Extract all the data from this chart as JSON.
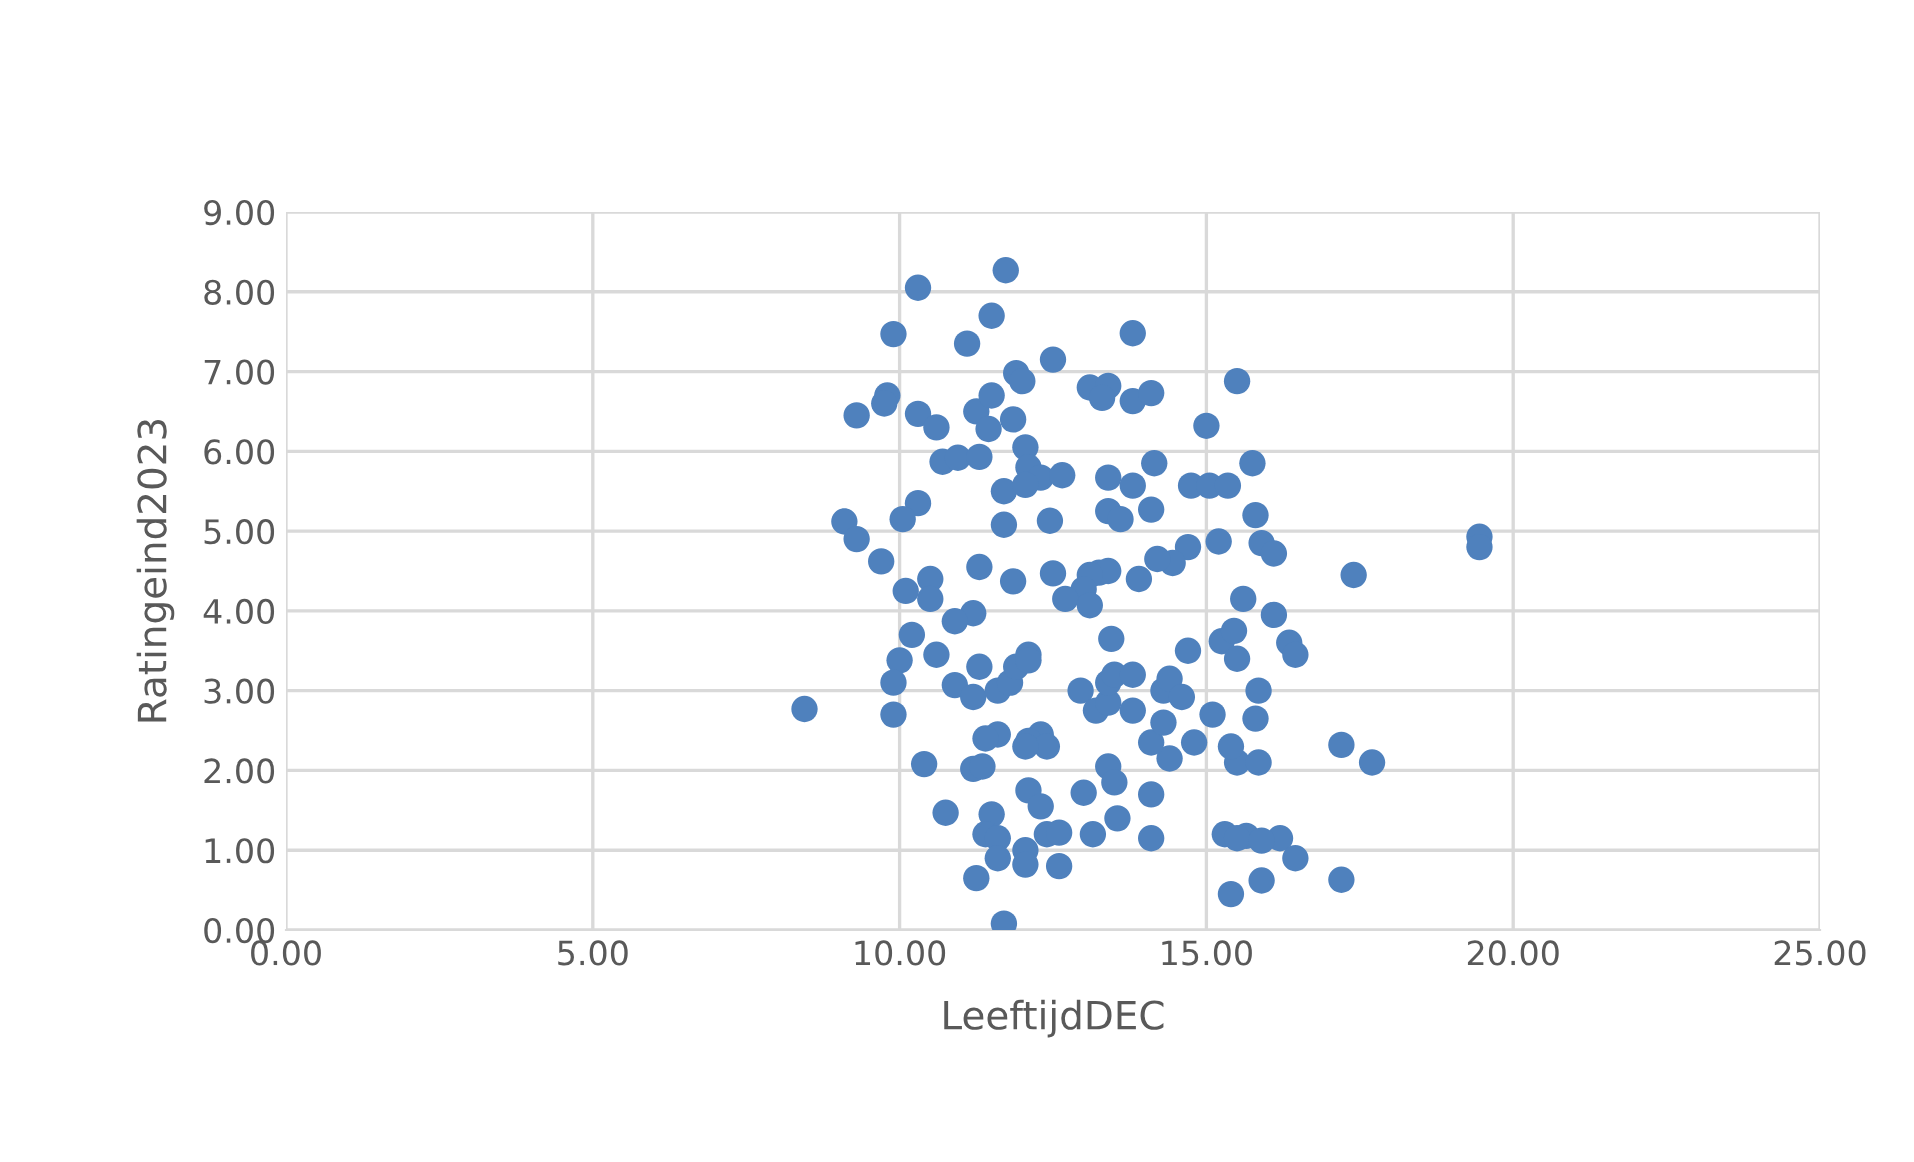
{
  "chart_data": {
    "type": "scatter",
    "xlabel": "LeeftijdDEC",
    "ylabel": "Ratingeind2023",
    "xlim": [
      0,
      25
    ],
    "xticks": [
      {
        "value": 0,
        "label": "0.00"
      },
      {
        "value": 5,
        "label": "5.00"
      },
      {
        "value": 10,
        "label": "10.00"
      },
      {
        "value": 15,
        "label": "15.00"
      },
      {
        "value": 20,
        "label": "20.00"
      },
      {
        "value": 25,
        "label": "25.00"
      }
    ],
    "ylim": [
      0,
      9
    ],
    "yticks": [
      {
        "value": 0,
        "label": "0.00"
      },
      {
        "value": 1,
        "label": "1.00"
      },
      {
        "value": 2,
        "label": "2.00"
      },
      {
        "value": 3,
        "label": "3.00"
      },
      {
        "value": 4,
        "label": "4.00"
      },
      {
        "value": 5,
        "label": "5.00"
      },
      {
        "value": 6,
        "label": "6.00"
      },
      {
        "value": 7,
        "label": "7.00"
      },
      {
        "value": 8,
        "label": "8.00"
      },
      {
        "value": 9,
        "label": "9.00"
      }
    ],
    "grid": true,
    "marker": "circle",
    "series": [
      {
        "color": "#4f81bd",
        "x": [
          11.73,
          10.3,
          11.5,
          9.9,
          11.1,
          12.5,
          13.8,
          11.9,
          12.0,
          13.1,
          13.4,
          13.3,
          13.8,
          14.1,
          15.5,
          9.8,
          9.75,
          9.3,
          10.3,
          10.6,
          11.25,
          11.5,
          11.45,
          11.85,
          15.0,
          12.05,
          10.7,
          10.95,
          11.3,
          12.1,
          11.7,
          12.3,
          12.65,
          12.05,
          13.4,
          13.8,
          14.15,
          14.75,
          15.05,
          15.35,
          15.75,
          10.3,
          9.1,
          9.3,
          10.05,
          11.7,
          12.45,
          13.4,
          13.6,
          14.1,
          15.8,
          15.9,
          16.1,
          15.2,
          14.7,
          14.45,
          14.2,
          13.9,
          13.25,
          13.4,
          13.1,
          13.0,
          12.7,
          13.1,
          12.5,
          11.85,
          11.3,
          10.5,
          9.7,
          10.1,
          10.5,
          11.2,
          10.9,
          10.2,
          10.6,
          10.0,
          9.9,
          9.9,
          8.45,
          10.9,
          11.2,
          11.3,
          11.6,
          11.8,
          11.9,
          12.1,
          12.1,
          12.95,
          13.2,
          13.4,
          13.4,
          13.5,
          13.8,
          13.8,
          13.45,
          14.3,
          14.4,
          14.6,
          14.7,
          15.1,
          15.25,
          15.45,
          15.5,
          15.6,
          16.1,
          16.35,
          16.45,
          17.4,
          19.45,
          19.45,
          15.85,
          15.8,
          15.5,
          15.4,
          15.85,
          17.2,
          17.7,
          14.8,
          14.4,
          14.1,
          14.3,
          13.4,
          13.5,
          13.0,
          14.1,
          12.3,
          12.1,
          12.4,
          12.05,
          11.6,
          11.4,
          11.2,
          11.35,
          10.4,
          12.1,
          12.3,
          11.5,
          10.75,
          11.4,
          11.6,
          12.4,
          12.6,
          13.15,
          13.55,
          14.1,
          12.05,
          12.05,
          12.6,
          11.6,
          11.25,
          11.7,
          15.3,
          15.65,
          15.5,
          16.2,
          15.9,
          15.4,
          15.9,
          16.45,
          17.2
        ],
        "values": [
          8.27,
          8.05,
          7.7,
          7.47,
          7.35,
          7.15,
          7.48,
          6.98,
          6.88,
          6.8,
          6.82,
          6.67,
          6.63,
          6.73,
          6.88,
          6.7,
          6.6,
          6.45,
          6.47,
          6.3,
          6.5,
          6.7,
          6.28,
          6.4,
          6.32,
          6.05,
          5.87,
          5.92,
          5.93,
          5.8,
          5.5,
          5.67,
          5.7,
          5.58,
          5.67,
          5.57,
          5.85,
          5.57,
          5.57,
          5.57,
          5.85,
          5.35,
          5.12,
          4.9,
          5.15,
          5.08,
          5.13,
          5.25,
          5.15,
          5.27,
          5.2,
          4.85,
          4.72,
          4.87,
          4.8,
          4.6,
          4.65,
          4.4,
          4.48,
          4.5,
          4.45,
          4.27,
          4.15,
          4.07,
          4.47,
          4.37,
          4.55,
          4.4,
          4.62,
          4.25,
          4.15,
          3.97,
          3.87,
          3.7,
          3.45,
          3.38,
          3.1,
          2.7,
          2.77,
          3.07,
          2.92,
          3.3,
          3.0,
          3.1,
          3.3,
          3.45,
          3.38,
          3.0,
          2.75,
          2.85,
          3.1,
          3.2,
          3.2,
          2.75,
          3.65,
          3.0,
          3.15,
          2.92,
          3.5,
          2.7,
          3.62,
          3.75,
          3.4,
          4.15,
          3.95,
          3.6,
          3.45,
          4.45,
          4.93,
          4.8,
          3.0,
          2.65,
          2.1,
          2.3,
          2.1,
          2.32,
          2.1,
          2.35,
          2.15,
          2.35,
          2.6,
          2.05,
          1.85,
          1.72,
          1.7,
          2.45,
          2.37,
          2.3,
          2.3,
          2.45,
          2.4,
          2.02,
          2.05,
          2.08,
          1.75,
          1.55,
          1.45,
          1.47,
          1.2,
          1.15,
          1.2,
          1.22,
          1.2,
          1.4,
          1.15,
          1.0,
          0.82,
          0.8,
          0.9,
          0.65,
          0.08,
          1.2,
          1.18,
          1.15,
          1.15,
          1.12,
          0.45,
          0.62,
          0.9,
          0.63
        ]
      }
    ]
  }
}
